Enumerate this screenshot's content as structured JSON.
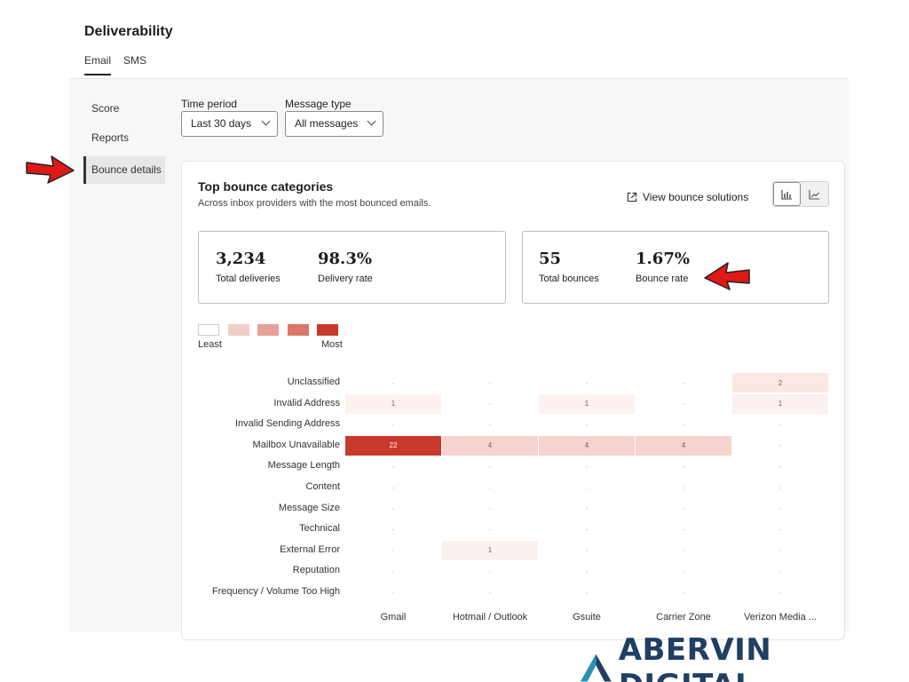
{
  "header": {
    "title": "Deliverability",
    "tabs": [
      {
        "label": "Email",
        "active": true
      },
      {
        "label": "SMS",
        "active": false
      }
    ]
  },
  "sidebar": {
    "items": [
      {
        "label": "Score"
      },
      {
        "label": "Reports"
      },
      {
        "label": "Bounce details",
        "active": true
      }
    ]
  },
  "filters": {
    "time_period": {
      "label": "Time period",
      "value": "Last 30 days"
    },
    "message_type": {
      "label": "Message type",
      "value": "All messages"
    }
  },
  "card": {
    "title": "Top bounce categories",
    "subtitle": "Across inbox providers with the most bounced emails.",
    "solutions_link": "View bounce solutions",
    "view_toggle": {
      "selected": "bar-chart"
    }
  },
  "stats": {
    "deliveries": {
      "value": "3,234",
      "label": "Total deliveries"
    },
    "delivery_rate": {
      "value": "98.3%",
      "label": "Delivery rate"
    },
    "bounces": {
      "value": "55",
      "label": "Total bounces"
    },
    "bounce_rate": {
      "value": "1.67%",
      "label": "Bounce rate"
    }
  },
  "legend": {
    "least": "Least",
    "most": "Most",
    "colors": [
      "#ffffff",
      "#f2cdc8",
      "#e6a198",
      "#dd7668",
      "#c9392b"
    ]
  },
  "heatmap": {
    "providers": [
      "Gmail",
      "Hotmail / Outlook",
      "Gsuite",
      "Carrier Zone",
      "Verizon Media ..."
    ],
    "categories": [
      "Unclassified",
      "Invalid Address",
      "Invalid Sending Address",
      "Mailbox Unavailable",
      "Message Length",
      "Content",
      "Message Size",
      "Technical",
      "External Error",
      "Reputation",
      "Frequency / Volume Too High"
    ],
    "values": [
      [
        "-",
        "-",
        "-",
        "-",
        "2"
      ],
      [
        "1",
        "-",
        "1",
        "-",
        "1"
      ],
      [
        "-",
        "-",
        "-",
        "-",
        "-"
      ],
      [
        "22",
        "4",
        "4",
        "4",
        "-"
      ],
      [
        "-",
        "-",
        "-",
        "-",
        "-"
      ],
      [
        "-",
        "-",
        "-",
        "-",
        "-"
      ],
      [
        "-",
        "-",
        "-",
        "-",
        "-"
      ],
      [
        "-",
        "-",
        "-",
        "-",
        "-"
      ],
      [
        "-",
        "1",
        "-",
        "-",
        "-"
      ],
      [
        "-",
        "-",
        "-",
        "-",
        "-"
      ],
      [
        "-",
        "-",
        "-",
        "-",
        "-"
      ]
    ],
    "colors": {
      "low1": "#fdf1ef",
      "low2": "#fbe7e4",
      "mid": "#f6d3ce",
      "high": "#c9392b"
    }
  },
  "brand": {
    "name": "ABERVIN DIGITAL",
    "color": "#1f3f64",
    "accent": "#2a8fb8"
  },
  "annotations": {
    "arrow_color": "#e01818"
  }
}
